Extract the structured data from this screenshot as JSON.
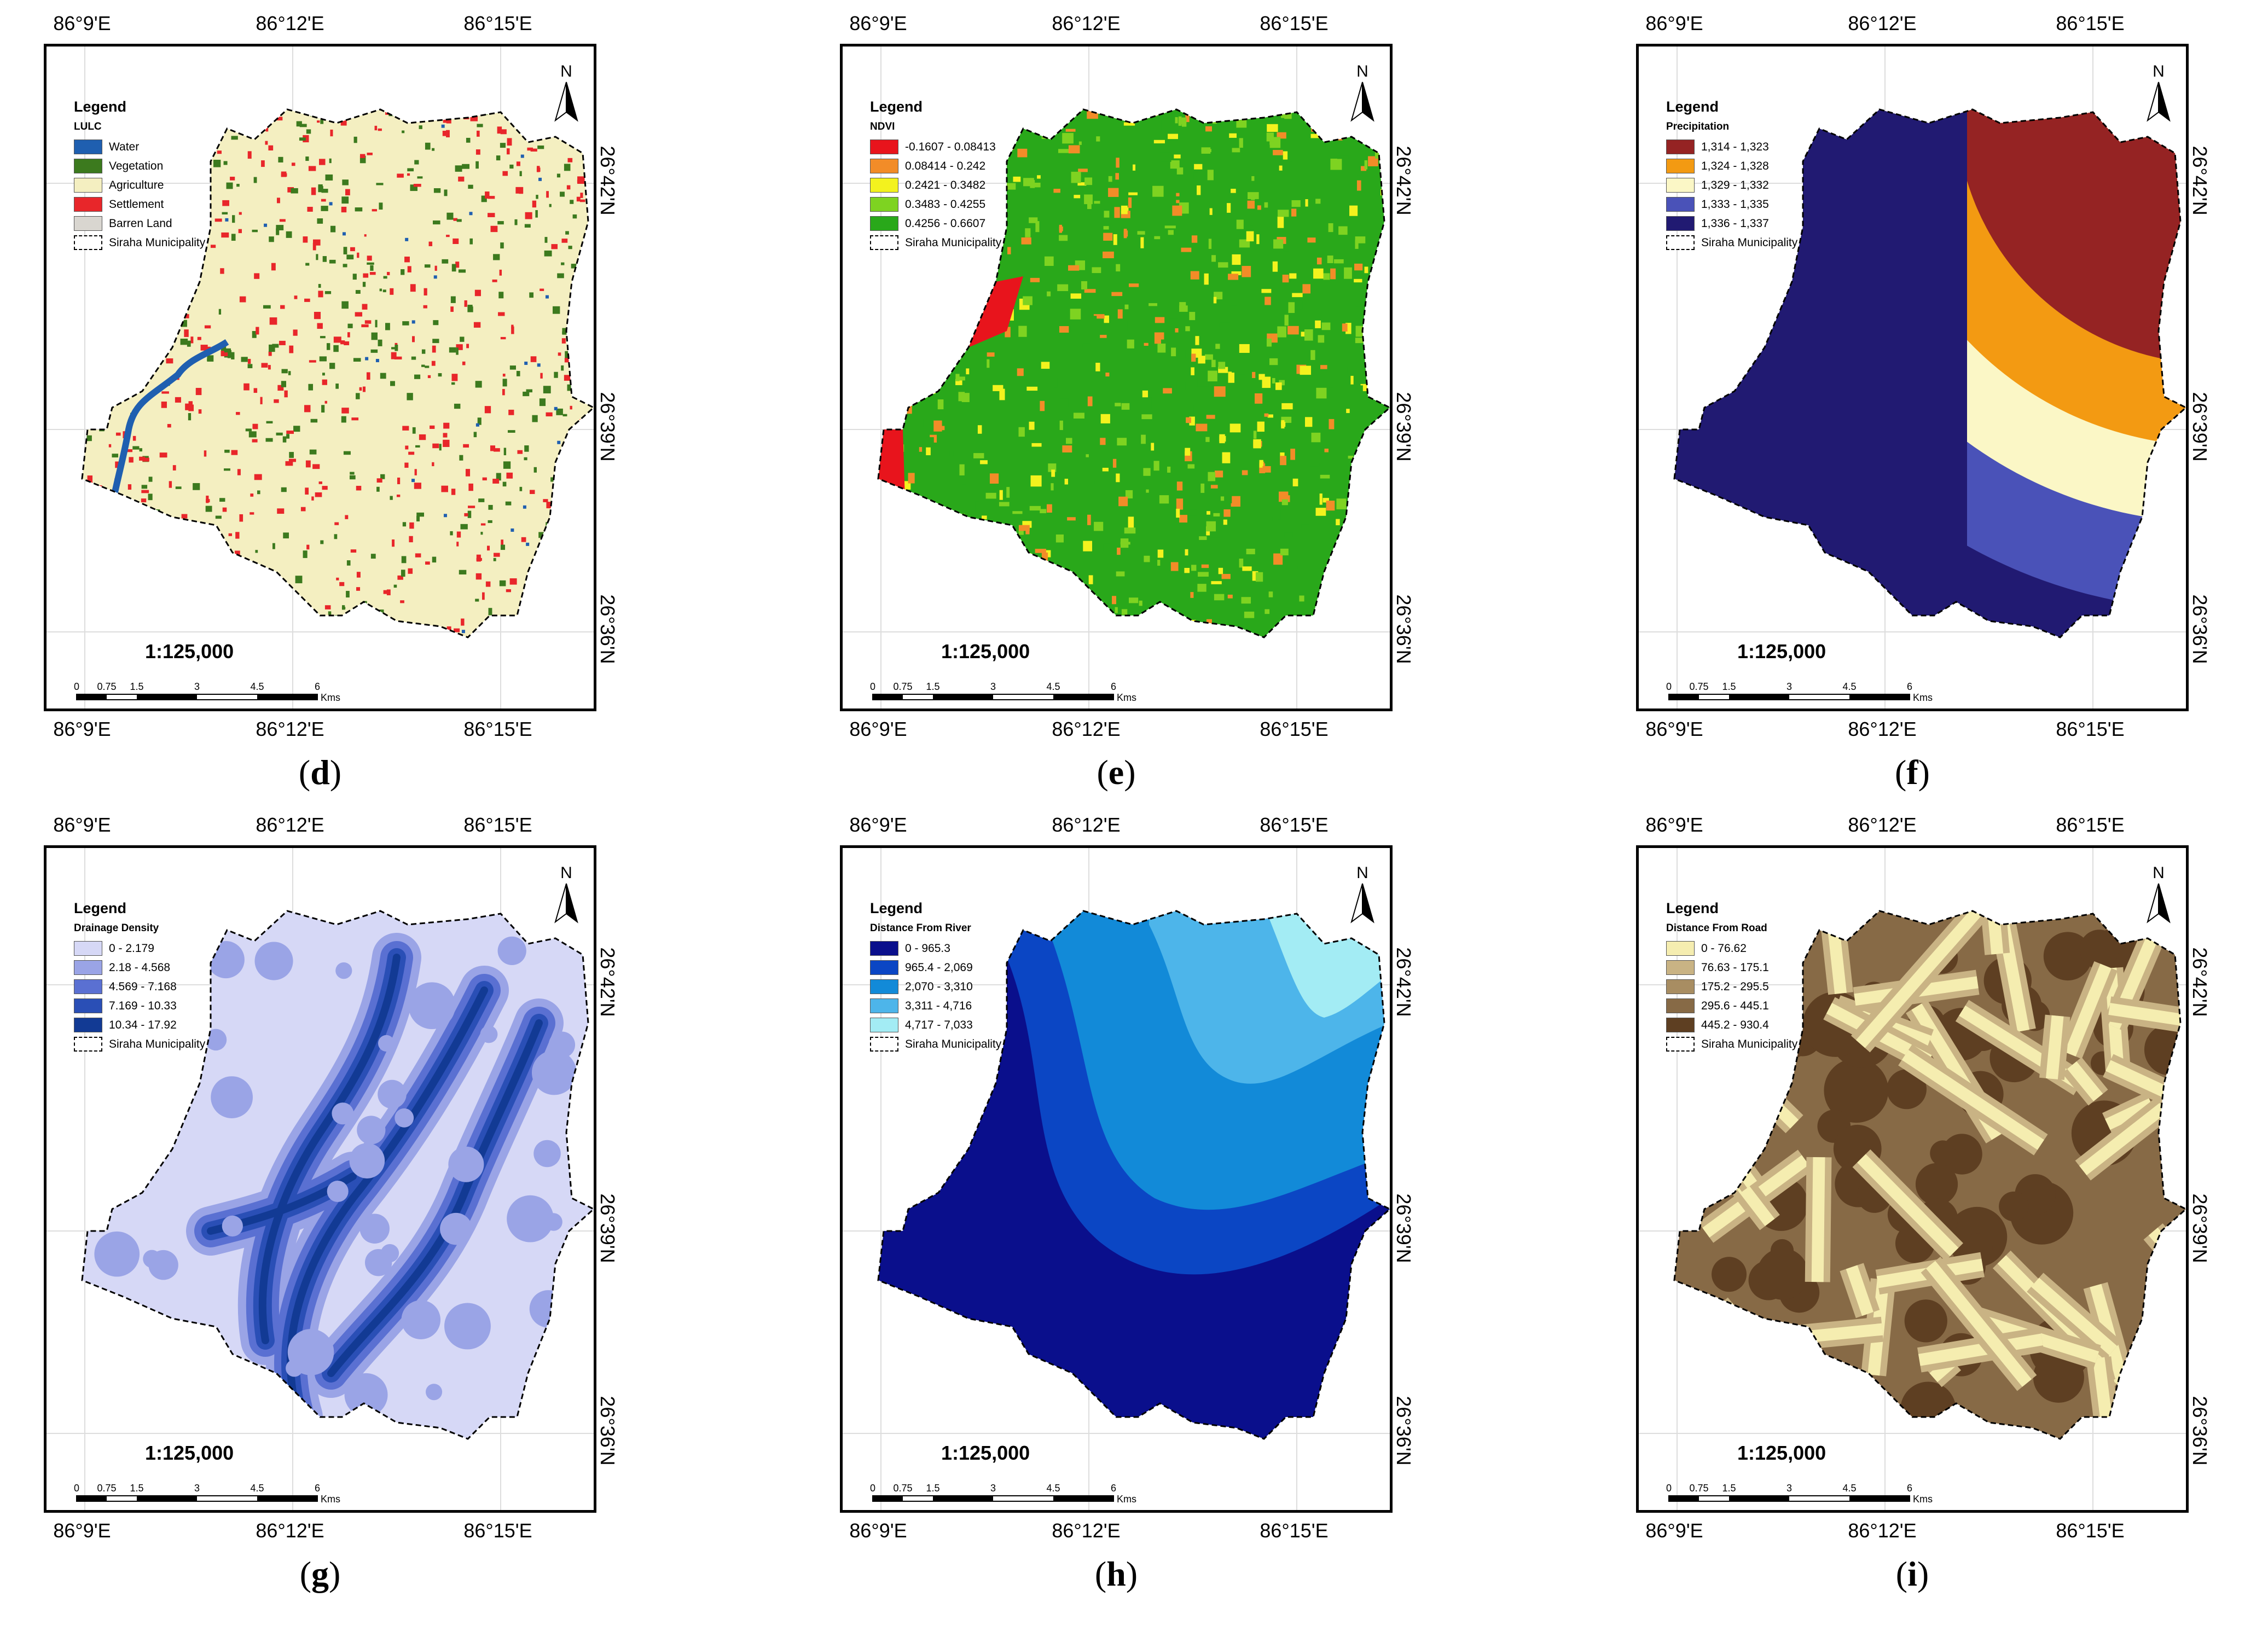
{
  "scale_text": "1:125,000",
  "legend_title": "Legend",
  "boundary_label": "Siraha Municipality",
  "north_label": "N",
  "scalebar": {
    "ticks": [
      "0",
      "0.75",
      "1.5",
      "3",
      "4.5",
      "6"
    ],
    "unit": "Kms"
  },
  "ticks": {
    "lon": [
      "86°9'E",
      "86°12'E",
      "86°15'E"
    ],
    "lat": [
      "26°42'N",
      "26°39'N",
      "26°36'N"
    ]
  },
  "panels": [
    {
      "id": "d",
      "caption": "d",
      "theme": "LULC",
      "classes": [
        {
          "label": "Water",
          "color": "#1f5fb0"
        },
        {
          "label": "Vegetation",
          "color": "#3c7a1e"
        },
        {
          "label": "Agriculture",
          "color": "#f4efc1"
        },
        {
          "label": "Settlement",
          "color": "#e8262a"
        },
        {
          "label": "Barren Land",
          "color": "#d9d6d0"
        }
      ]
    },
    {
      "id": "e",
      "caption": "e",
      "theme": "NDVI",
      "classes": [
        {
          "label": "-0.1607 - 0.08413",
          "color": "#e8141c"
        },
        {
          "label": "0.08414 - 0.242",
          "color": "#f28c28"
        },
        {
          "label": "0.2421 - 0.3482",
          "color": "#f3f21e"
        },
        {
          "label": "0.3483 - 0.4255",
          "color": "#7ed321"
        },
        {
          "label": "0.4256 - 0.6607",
          "color": "#29a81a"
        }
      ]
    },
    {
      "id": "f",
      "caption": "f",
      "theme": "Precipitation",
      "classes": [
        {
          "label": "1,314 - 1,323",
          "color": "#952323"
        },
        {
          "label": "1,324 - 1,328",
          "color": "#f39a12"
        },
        {
          "label": "1,329 - 1,332",
          "color": "#fbf7c6"
        },
        {
          "label": "1,333 - 1,335",
          "color": "#4a52b8"
        },
        {
          "label": "1,336 - 1,337",
          "color": "#211a72"
        }
      ]
    },
    {
      "id": "g",
      "caption": "g",
      "theme": "Drainage Density",
      "classes": [
        {
          "label": "0 - 2.179",
          "color": "#d6d8f6"
        },
        {
          "label": "2.18 - 4.568",
          "color": "#9aa4e6"
        },
        {
          "label": "4.569 - 7.168",
          "color": "#5a70d2"
        },
        {
          "label": "7.169 - 10.33",
          "color": "#2a4fb6"
        },
        {
          "label": "10.34 - 17.92",
          "color": "#123a94"
        }
      ]
    },
    {
      "id": "h",
      "caption": "h",
      "theme": "Distance From River",
      "classes": [
        {
          "label": "0 - 965.3",
          "color": "#0a0f8c"
        },
        {
          "label": "965.4 - 2,069",
          "color": "#0b46c4"
        },
        {
          "label": "2,070 - 3,310",
          "color": "#128ad8"
        },
        {
          "label": "3,311 - 4,716",
          "color": "#4db5ea"
        },
        {
          "label": "4,717 - 7,033",
          "color": "#a3ecf4"
        }
      ]
    },
    {
      "id": "i",
      "caption": "i",
      "theme": "Distance From Road",
      "classes": [
        {
          "label": "0 - 76.62",
          "color": "#f5edb0"
        },
        {
          "label": "76.63 - 175.1",
          "color": "#c9b384"
        },
        {
          "label": "175.2 - 295.5",
          "color": "#a88d62"
        },
        {
          "label": "295.6 - 445.1",
          "color": "#876a46"
        },
        {
          "label": "445.2 - 930.4",
          "color": "#5e3f22"
        }
      ]
    }
  ]
}
